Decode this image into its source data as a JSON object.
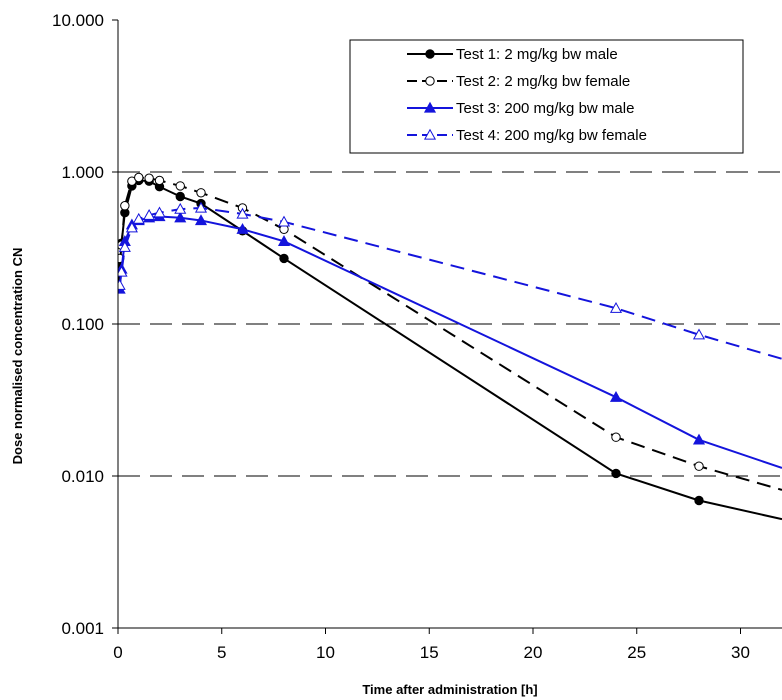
{
  "chart_data": {
    "type": "line",
    "xlabel": "Time after administration [h]",
    "ylabel": "Dose normalised concentration CN",
    "xlim": [
      0,
      32
    ],
    "ylim": [
      0.001,
      10
    ],
    "yscale": "log",
    "xticks": [
      0,
      5,
      10,
      15,
      20,
      25,
      30
    ],
    "xtick_labels": [
      "0",
      "5",
      "10",
      "15",
      "20",
      "25",
      "30"
    ],
    "yticks": [
      0.001,
      0.01,
      0.1,
      1,
      10
    ],
    "ytick_labels": [
      "0.001",
      "0.010",
      "0.100",
      "1.000",
      "10.000"
    ],
    "grid": "horizontal dashed at major y ticks",
    "legend_position": "top-right",
    "series": [
      {
        "name": "Test 1: 2 mg/kg bw male",
        "color": "#000000",
        "line": "solid",
        "marker": "filled-circle",
        "x": [
          0,
          0.08,
          0.17,
          0.33,
          0.67,
          1,
          1.5,
          2,
          3,
          4,
          6,
          8,
          24,
          28,
          32
        ],
        "y": [
          0.165,
          0.23,
          0.34,
          0.54,
          0.81,
          0.88,
          0.87,
          0.8,
          0.69,
          0.62,
          0.41,
          0.27,
          0.0104,
          0.0069,
          0.0052
        ]
      },
      {
        "name": "Test 2: 2 mg/kg bw female",
        "color": "#000000",
        "line": "dashed",
        "marker": "open-circle",
        "x": [
          0,
          0.08,
          0.17,
          0.33,
          0.67,
          1,
          1.5,
          2,
          3,
          4,
          6,
          8,
          24,
          28,
          32
        ],
        "y": [
          0.165,
          0.27,
          0.33,
          0.6,
          0.87,
          0.92,
          0.91,
          0.88,
          0.81,
          0.73,
          0.58,
          0.42,
          0.018,
          0.0116,
          0.0081
        ]
      },
      {
        "name": "Test 3: 200 mg/kg bw male",
        "color": "#1414dc",
        "line": "solid",
        "marker": "filled-triangle",
        "x": [
          0,
          0.08,
          0.17,
          0.33,
          0.67,
          1,
          1.5,
          2,
          3,
          4,
          6,
          8,
          24,
          28,
          32
        ],
        "y": [
          0.165,
          0.17,
          0.23,
          0.35,
          0.45,
          0.48,
          0.5,
          0.51,
          0.5,
          0.48,
          0.42,
          0.35,
          0.033,
          0.0173,
          0.0113
        ]
      },
      {
        "name": "Test 4: 200 mg/kg bw female",
        "color": "#1414dc",
        "line": "dashed",
        "marker": "open-triangle",
        "x": [
          0,
          0.08,
          0.17,
          0.33,
          0.67,
          1,
          1.5,
          2,
          3,
          4,
          6,
          8,
          24,
          28,
          32
        ],
        "y": [
          0.165,
          0.18,
          0.22,
          0.32,
          0.43,
          0.49,
          0.52,
          0.54,
          0.57,
          0.58,
          0.53,
          0.47,
          0.127,
          0.085,
          0.059
        ]
      }
    ]
  }
}
